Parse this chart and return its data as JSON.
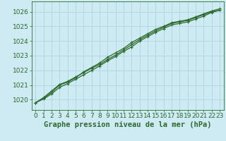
{
  "bg_color": "#ceeaf3",
  "plot_bg_color": "#ceeaf3",
  "grid_color": "#b0d4e0",
  "line_color": "#2d6a2d",
  "marker_color": "#2d6a2d",
  "title": "Graphe pression niveau de la mer (hPa)",
  "xlim": [
    -0.5,
    23.5
  ],
  "ylim": [
    1019.3,
    1026.7
  ],
  "yticks": [
    1020,
    1021,
    1022,
    1023,
    1024,
    1025,
    1026
  ],
  "xticks": [
    0,
    1,
    2,
    3,
    4,
    5,
    6,
    7,
    8,
    9,
    10,
    11,
    12,
    13,
    14,
    15,
    16,
    17,
    18,
    19,
    20,
    21,
    22,
    23
  ],
  "line1_x": [
    0,
    1,
    2,
    3,
    4,
    5,
    6,
    7,
    8,
    9,
    10,
    11,
    12,
    13,
    14,
    15,
    16,
    17,
    18,
    19,
    20,
    21,
    22,
    23
  ],
  "line1_y": [
    1019.8,
    1020.1,
    1020.5,
    1021.0,
    1021.2,
    1021.5,
    1021.9,
    1022.2,
    1022.5,
    1022.9,
    1023.2,
    1023.5,
    1023.9,
    1024.2,
    1024.5,
    1024.8,
    1025.0,
    1025.25,
    1025.35,
    1025.45,
    1025.65,
    1025.85,
    1026.05,
    1026.2
  ],
  "line2_x": [
    0,
    1,
    2,
    3,
    4,
    5,
    6,
    7,
    8,
    9,
    10,
    11,
    12,
    13,
    14,
    15,
    16,
    17,
    18,
    19,
    20,
    21,
    22,
    23
  ],
  "line2_y": [
    1019.8,
    1020.15,
    1020.6,
    1021.05,
    1021.25,
    1021.55,
    1021.85,
    1022.15,
    1022.4,
    1022.75,
    1023.05,
    1023.4,
    1023.75,
    1024.1,
    1024.4,
    1024.7,
    1024.95,
    1025.2,
    1025.3,
    1025.4,
    1025.6,
    1025.8,
    1026.0,
    1026.1
  ],
  "line3_x": [
    0,
    1,
    2,
    3,
    4,
    5,
    6,
    7,
    8,
    9,
    10,
    11,
    12,
    13,
    14,
    15,
    16,
    17,
    18,
    19,
    20,
    21,
    22,
    23
  ],
  "line3_y": [
    1019.8,
    1020.05,
    1020.4,
    1020.85,
    1021.1,
    1021.4,
    1021.7,
    1022.0,
    1022.3,
    1022.65,
    1022.95,
    1023.3,
    1023.6,
    1024.0,
    1024.3,
    1024.6,
    1024.85,
    1025.1,
    1025.2,
    1025.3,
    1025.5,
    1025.7,
    1025.95,
    1026.1
  ],
  "title_fontsize": 7.5,
  "tick_fontsize": 6.5,
  "lw": 0.9,
  "ms": 3.5
}
